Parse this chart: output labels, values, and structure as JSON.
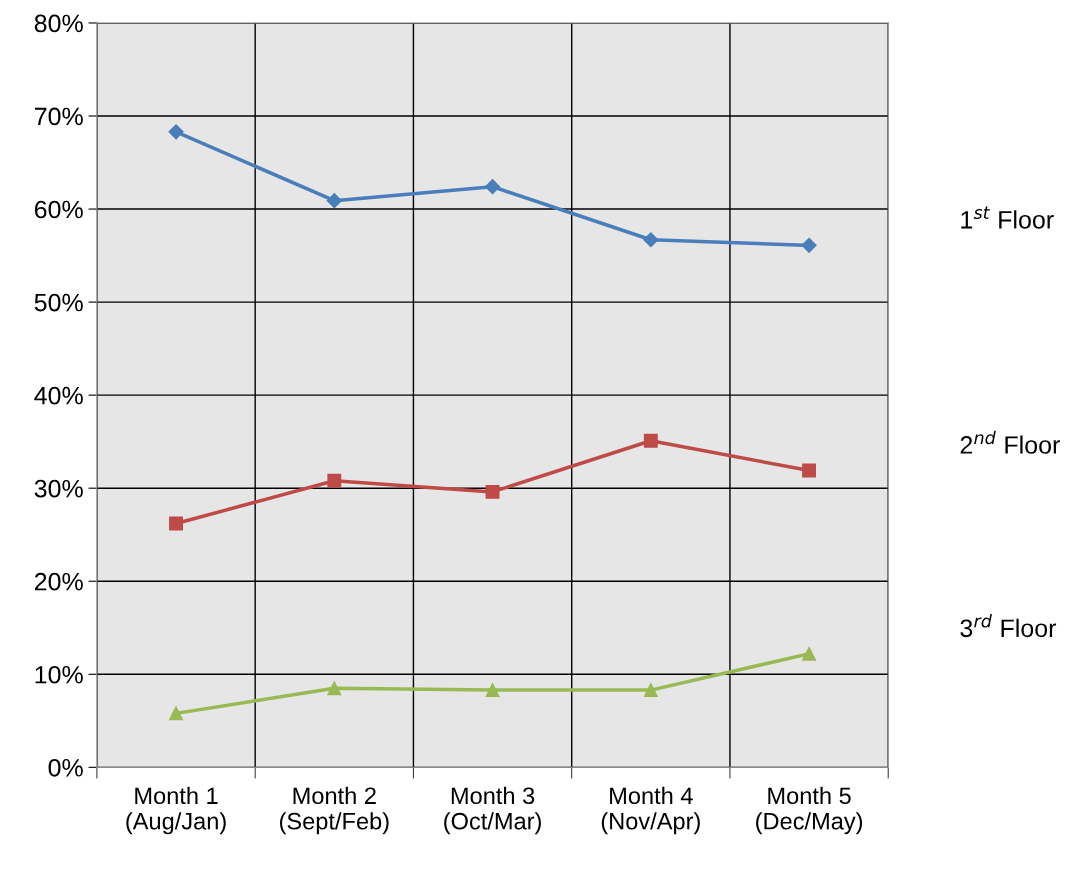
{
  "chart_data": {
    "type": "line",
    "categories": [
      "Month 1\n(Aug/Jan)",
      "Month 2\n(Sept/Feb)",
      "Month 3\n(Oct/Mar)",
      "Month 4\n(Nov/Apr)",
      "Month 5\n(Dec/May)"
    ],
    "series": [
      {
        "name": "1$^{st}$ Floor",
        "color": "#4a7ebb",
        "marker": "diamond",
        "values": [
          68.3,
          60.9,
          62.4,
          56.7,
          56.1
        ]
      },
      {
        "name": "2$^{nd}$ Floor",
        "color": "#be4b48",
        "marker": "square",
        "values": [
          26.2,
          30.8,
          29.6,
          35.1,
          31.9
        ]
      },
      {
        "name": "3$^{rd}$ Floor",
        "color": "#98b954",
        "marker": "triangle",
        "values": [
          5.8,
          8.5,
          8.3,
          8.3,
          12.2
        ]
      }
    ],
    "ylim": [
      0,
      80
    ],
    "yticks": [
      {
        "value": 0,
        "label": "0%"
      },
      {
        "value": 10,
        "label": "10%"
      },
      {
        "value": 20,
        "label": "20%"
      },
      {
        "value": 30,
        "label": "30%"
      },
      {
        "value": 40,
        "label": "40%"
      },
      {
        "value": 50,
        "label": "50%"
      },
      {
        "value": 60,
        "label": "60%"
      },
      {
        "value": 70,
        "label": "70%"
      },
      {
        "value": 80,
        "label": "80%"
      }
    ],
    "grid": true,
    "legend": false,
    "line_style": "solid"
  }
}
